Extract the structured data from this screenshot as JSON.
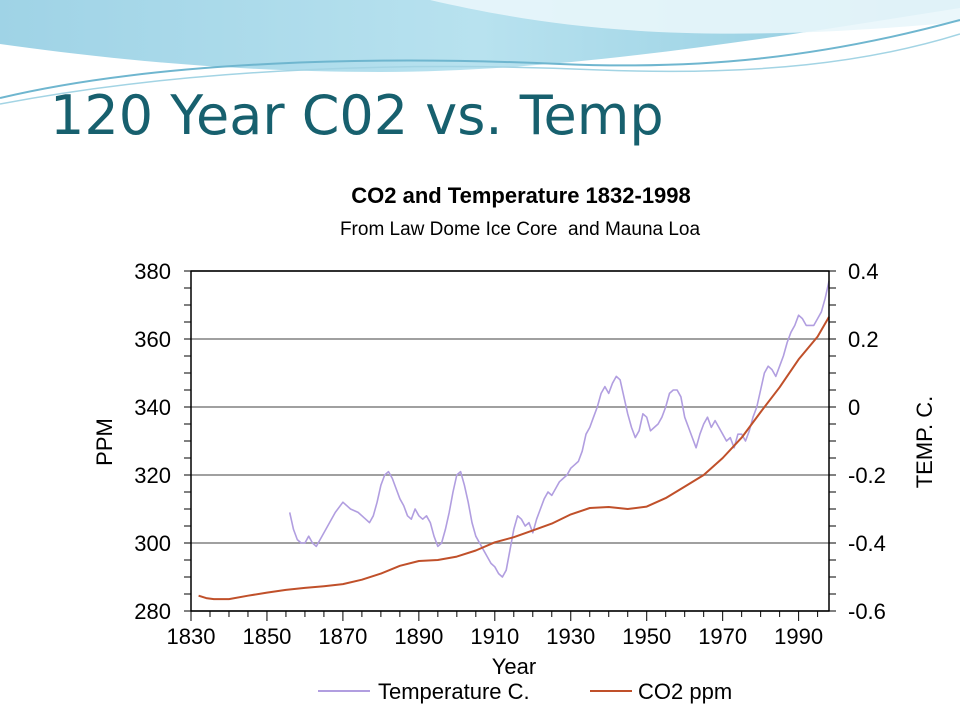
{
  "slide": {
    "title": "120 Year C02 vs. Temp"
  },
  "chart_data": {
    "type": "line",
    "title": "CO2 and Temperature 1832-1998",
    "subtitle": "From Law Dome Ice Core  and Mauna Loa",
    "xlabel": "Year",
    "ylabel_left": "PPM",
    "ylabel_right": "TEMP. C.",
    "xlim": [
      1830,
      1998
    ],
    "x_ticks": [
      1830,
      1850,
      1870,
      1890,
      1910,
      1930,
      1950,
      1970,
      1990
    ],
    "ylim_left": [
      280,
      380
    ],
    "y_ticks_left": [
      280,
      300,
      320,
      340,
      360,
      380
    ],
    "ylim_right": [
      -0.6,
      0.4
    ],
    "y_ticks_right": [
      "-0.6",
      "-0.4",
      "-0.2",
      "0",
      "0.2",
      "0.4"
    ],
    "grid": "horizontal",
    "legend_position": "bottom",
    "series": [
      {
        "name": "Temperature C.",
        "axis": "right",
        "color": "#b19ee0",
        "x": [
          1856,
          1857,
          1858,
          1859,
          1860,
          1861,
          1862,
          1863,
          1864,
          1866,
          1868,
          1870,
          1872,
          1874,
          1876,
          1877,
          1878,
          1879,
          1880,
          1881,
          1882,
          1883,
          1884,
          1885,
          1886,
          1887,
          1888,
          1889,
          1890,
          1891,
          1892,
          1893,
          1894,
          1895,
          1896,
          1897,
          1898,
          1899,
          1900,
          1901,
          1902,
          1903,
          1904,
          1905,
          1906,
          1907,
          1908,
          1909,
          1910,
          1911,
          1912,
          1913,
          1914,
          1915,
          1916,
          1917,
          1918,
          1919,
          1920,
          1921,
          1922,
          1923,
          1924,
          1925,
          1926,
          1927,
          1928,
          1929,
          1930,
          1931,
          1932,
          1933,
          1934,
          1935,
          1936,
          1937,
          1938,
          1939,
          1940,
          1941,
          1942,
          1943,
          1944,
          1945,
          1946,
          1947,
          1948,
          1949,
          1950,
          1951,
          1952,
          1953,
          1954,
          1955,
          1956,
          1957,
          1958,
          1959,
          1960,
          1961,
          1962,
          1963,
          1964,
          1965,
          1966,
          1967,
          1968,
          1969,
          1970,
          1971,
          1972,
          1973,
          1974,
          1975,
          1976,
          1977,
          1978,
          1979,
          1980,
          1981,
          1982,
          1983,
          1984,
          1985,
          1986,
          1987,
          1988,
          1989,
          1990,
          1991,
          1992,
          1993,
          1994,
          1995,
          1996,
          1997,
          1998
        ],
        "values": [
          -0.31,
          -0.36,
          -0.39,
          -0.4,
          -0.4,
          -0.38,
          -0.4,
          -0.41,
          -0.39,
          -0.35,
          -0.31,
          -0.28,
          -0.3,
          -0.31,
          -0.33,
          -0.34,
          -0.32,
          -0.28,
          -0.23,
          -0.2,
          -0.19,
          -0.21,
          -0.24,
          -0.27,
          -0.29,
          -0.32,
          -0.33,
          -0.3,
          -0.32,
          -0.33,
          -0.32,
          -0.34,
          -0.38,
          -0.41,
          -0.4,
          -0.36,
          -0.31,
          -0.25,
          -0.2,
          -0.19,
          -0.23,
          -0.28,
          -0.34,
          -0.38,
          -0.4,
          -0.42,
          -0.44,
          -0.46,
          -0.47,
          -0.49,
          -0.5,
          -0.48,
          -0.42,
          -0.36,
          -0.32,
          -0.33,
          -0.35,
          -0.34,
          -0.37,
          -0.33,
          -0.3,
          -0.27,
          -0.25,
          -0.26,
          -0.24,
          -0.22,
          -0.21,
          -0.2,
          -0.18,
          -0.17,
          -0.16,
          -0.13,
          -0.08,
          -0.06,
          -0.03,
          0.0,
          0.04,
          0.06,
          0.04,
          0.07,
          0.09,
          0.08,
          0.03,
          -0.02,
          -0.06,
          -0.09,
          -0.07,
          -0.02,
          -0.03,
          -0.07,
          -0.06,
          -0.05,
          -0.03,
          0.0,
          0.04,
          0.05,
          0.05,
          0.03,
          -0.03,
          -0.06,
          -0.09,
          -0.12,
          -0.08,
          -0.05,
          -0.03,
          -0.06,
          -0.04,
          -0.06,
          -0.08,
          -0.1,
          -0.09,
          -0.12,
          -0.08,
          -0.08,
          -0.1,
          -0.07,
          -0.03,
          0.0,
          0.05,
          0.1,
          0.12,
          0.11,
          0.09,
          0.12,
          0.15,
          0.19,
          0.22,
          0.24,
          0.27,
          0.26,
          0.24,
          0.24,
          0.24,
          0.26,
          0.28,
          0.32,
          0.37
        ]
      },
      {
        "name": "CO2 ppm",
        "axis": "left",
        "color": "#c0502a",
        "x": [
          1832,
          1834,
          1836,
          1840,
          1845,
          1850,
          1855,
          1860,
          1865,
          1870,
          1875,
          1880,
          1885,
          1890,
          1895,
          1900,
          1905,
          1910,
          1915,
          1920,
          1925,
          1930,
          1935,
          1940,
          1945,
          1950,
          1955,
          1960,
          1965,
          1970,
          1975,
          1980,
          1985,
          1990,
          1995,
          1998
        ],
        "values": [
          284.5,
          283.8,
          283.5,
          283.5,
          284.5,
          285.4,
          286.2,
          286.8,
          287.3,
          287.9,
          289.2,
          291.0,
          293.3,
          294.7,
          295.0,
          296.0,
          297.8,
          300.2,
          301.7,
          303.7,
          305.7,
          308.4,
          310.3,
          310.6,
          310.0,
          310.7,
          313.2,
          316.6,
          320.0,
          325.0,
          331.0,
          338.5,
          345.8,
          354.0,
          360.7,
          366.5
        ]
      }
    ]
  }
}
